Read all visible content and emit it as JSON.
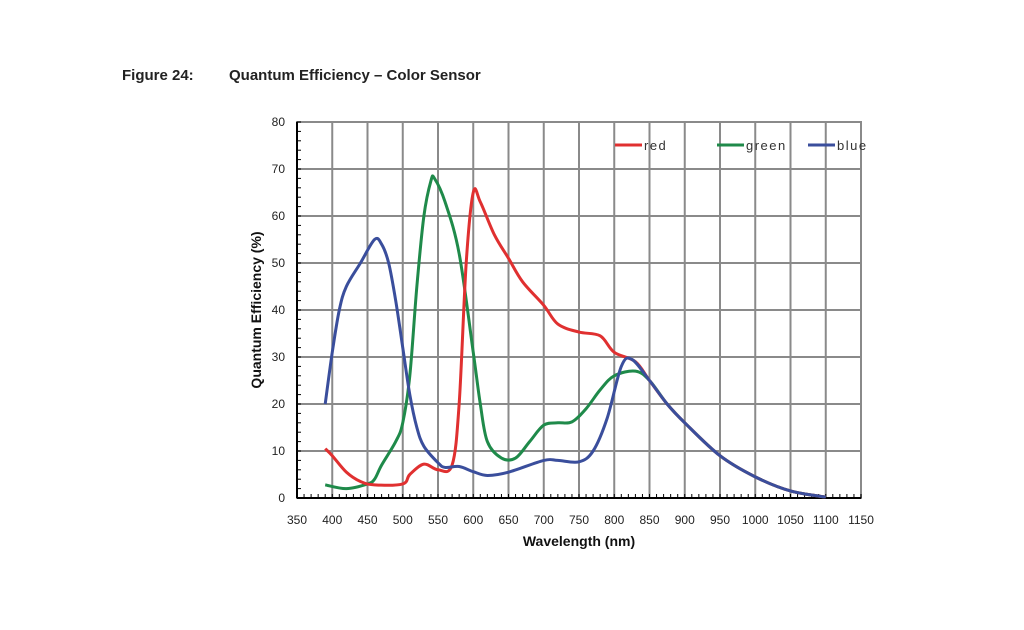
{
  "figure": {
    "number": "Figure 24:",
    "caption": "Quantum Efficiency – Color Sensor"
  },
  "chart_data": {
    "type": "line",
    "title": "Quantum Efficiency – Color Sensor",
    "xlabel": "Wavelength (nm)",
    "ylabel": "Quantum Efficiency (%)",
    "xlim": [
      350,
      1150
    ],
    "ylim": [
      0,
      80
    ],
    "xticks": [
      350,
      400,
      450,
      500,
      550,
      600,
      650,
      700,
      750,
      800,
      850,
      900,
      950,
      1000,
      1050,
      1100,
      1150
    ],
    "yticks": [
      0,
      10,
      20,
      30,
      40,
      50,
      60,
      70,
      80
    ],
    "grid": true,
    "legend_position": "top-right",
    "series": [
      {
        "name": "red",
        "color": "#e03030",
        "x": [
          390,
          400,
          420,
          440,
          460,
          500,
          510,
          530,
          550,
          570,
          580,
          590,
          600,
          610,
          630,
          650,
          670,
          700,
          720,
          750,
          780,
          800,
          830,
          850,
          875,
          900,
          950,
          1000,
          1050,
          1100
        ],
        "y": [
          10.5,
          9,
          5.5,
          3.5,
          2.8,
          3,
          5,
          7.2,
          6,
          7,
          20,
          50,
          65,
          63,
          56,
          51,
          46,
          41,
          37,
          35.3,
          34.5,
          31,
          29,
          25,
          20,
          16,
          9,
          4.5,
          1.5,
          0.2
        ]
      },
      {
        "name": "green",
        "color": "#1f8a4a",
        "x": [
          390,
          420,
          450,
          460,
          470,
          490,
          500,
          510,
          520,
          530,
          540,
          545,
          560,
          580,
          600,
          610,
          620,
          640,
          660,
          680,
          700,
          720,
          740,
          760,
          780,
          800,
          830,
          850,
          875,
          900,
          950,
          1000,
          1050,
          1100
        ],
        "y": [
          2.8,
          2,
          3,
          4,
          7,
          12,
          16,
          26,
          45,
          60,
          67.5,
          68,
          63,
          52,
          31,
          20,
          12,
          8.5,
          8.5,
          12,
          15.5,
          16,
          16.2,
          19,
          23,
          26,
          27,
          25,
          20,
          16,
          9,
          4.5,
          1.5,
          0.2
        ]
      },
      {
        "name": "blue",
        "color": "#3a4e9c",
        "x": [
          390,
          400,
          410,
          420,
          440,
          460,
          470,
          480,
          490,
          500,
          510,
          520,
          530,
          550,
          560,
          580,
          600,
          620,
          650,
          700,
          720,
          750,
          770,
          790,
          810,
          825,
          850,
          875,
          900,
          950,
          1000,
          1050,
          1100
        ],
        "y": [
          20,
          31,
          40,
          45,
          50,
          55,
          54,
          50,
          42,
          32,
          22,
          15,
          11,
          7.5,
          6.5,
          6.7,
          5.6,
          4.8,
          5.5,
          8,
          8,
          7.7,
          10,
          17,
          28,
          29.5,
          25,
          20,
          16,
          9,
          4.5,
          1.5,
          0.2
        ]
      }
    ]
  }
}
